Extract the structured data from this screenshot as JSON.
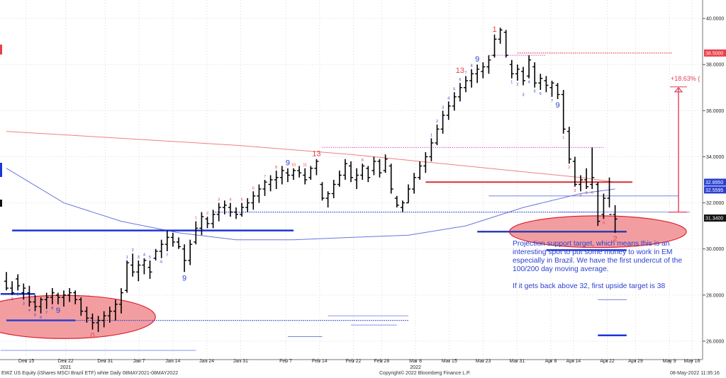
{
  "chart_data": {
    "type": "bar",
    "subtype": "ohlc-price-bars-with-demark-counts",
    "y_axis": {
      "side": "right",
      "ticks": [
        26,
        28,
        30,
        32,
        34,
        36,
        38,
        40
      ],
      "tick_labels": [
        "26.0000",
        "28.0000",
        "30.0000",
        "32.0000",
        "34.0000",
        "36.0000",
        "38.0000",
        "40.0000"
      ],
      "ylim": [
        25.2,
        40.8
      ]
    },
    "x_axis": {
      "ticks": [
        "Dec 15",
        "Dec 22",
        "Dec 31",
        "Jan 7",
        "Jan 14",
        "Jan 24",
        "Jan 31",
        "Feb 7",
        "Feb 14",
        "Feb 22",
        "Feb 28",
        "Mar 8",
        "Mar 15",
        "Mar 23",
        "Mar 31",
        "Apr 8",
        "Apr 14",
        "Apr 22",
        "Apr 29",
        "May 9",
        "May 16"
      ],
      "years": [
        {
          "label": "2021",
          "at": "Dec 22"
        },
        {
          "label": "2022",
          "at": "Mar 8"
        }
      ]
    },
    "price_tags": [
      {
        "label": "38.5000",
        "value": 38.5,
        "color": "#e8404a"
      },
      {
        "label": "32.8950",
        "value": 32.895,
        "color": "#2a3fd0"
      },
      {
        "label": "32.5595",
        "value": 32.5595,
        "color": "#2a3fd0"
      },
      {
        "label": "31.3400",
        "value": 31.34,
        "color": "#111111"
      }
    ],
    "annotation_pct": "+18.63% (",
    "ohlc": [
      [
        29.0,
        28.2,
        28.6,
        28.3
      ],
      [
        28.6,
        28.0,
        28.3,
        28.1
      ],
      [
        28.9,
        28.2,
        28.7,
        28.4
      ],
      [
        28.5,
        27.8,
        28.1,
        28.3
      ],
      [
        28.4,
        27.5,
        28.1,
        27.7
      ],
      [
        28.0,
        27.3,
        27.7,
        27.5
      ],
      [
        27.9,
        27.2,
        27.5,
        27.8
      ],
      [
        28.1,
        27.4,
        27.8,
        27.9
      ],
      [
        28.3,
        27.6,
        27.9,
        28.1
      ],
      [
        28.1,
        27.6,
        28.0,
        27.9
      ],
      [
        28.2,
        27.5,
        27.9,
        28.0
      ],
      [
        28.3,
        27.7,
        28.0,
        28.1
      ],
      [
        28.2,
        27.6,
        28.1,
        27.8
      ],
      [
        27.9,
        27.1,
        27.8,
        27.3
      ],
      [
        27.5,
        26.8,
        27.3,
        27.0
      ],
      [
        27.2,
        26.5,
        27.0,
        26.8
      ],
      [
        27.1,
        26.4,
        26.8,
        26.9
      ],
      [
        27.3,
        26.6,
        26.9,
        27.1
      ],
      [
        27.5,
        26.8,
        27.1,
        27.3
      ],
      [
        27.8,
        26.9,
        27.3,
        27.6
      ],
      [
        28.3,
        27.2,
        27.6,
        28.1
      ],
      [
        29.5,
        28.1,
        28.2,
        29.4
      ],
      [
        29.8,
        28.8,
        29.3,
        29.0
      ],
      [
        29.5,
        28.6,
        29.0,
        29.3
      ],
      [
        29.6,
        28.9,
        29.3,
        29.5
      ],
      [
        29.5,
        28.7,
        29.2,
        29.0
      ],
      [
        30.0,
        29.5,
        29.6,
        29.9
      ],
      [
        30.4,
        29.6,
        29.9,
        30.2
      ],
      [
        30.8,
        29.9,
        30.2,
        30.5
      ],
      [
        30.7,
        30.1,
        30.5,
        30.3
      ],
      [
        30.5,
        30.0,
        30.3,
        30.1
      ],
      [
        30.2,
        29.0,
        30.0,
        29.5
      ],
      [
        30.4,
        29.3,
        29.5,
        30.2
      ],
      [
        31.2,
        30.2,
        30.3,
        30.9
      ],
      [
        31.6,
        30.6,
        30.9,
        31.4
      ],
      [
        31.4,
        30.9,
        31.3,
        31.1
      ],
      [
        31.7,
        30.9,
        31.1,
        31.5
      ],
      [
        32.0,
        31.2,
        31.5,
        31.8
      ],
      [
        32.1,
        31.5,
        31.8,
        31.9
      ],
      [
        32.0,
        31.4,
        31.8,
        31.6
      ],
      [
        31.8,
        31.3,
        31.6,
        31.5
      ],
      [
        32.0,
        31.4,
        31.5,
        31.8
      ],
      [
        32.2,
        31.6,
        31.8,
        32.0
      ],
      [
        32.5,
        31.7,
        32.0,
        32.3
      ],
      [
        32.8,
        32.0,
        32.3,
        32.6
      ],
      [
        33.0,
        32.3,
        32.6,
        32.9
      ],
      [
        33.2,
        32.5,
        32.8,
        33.0
      ],
      [
        33.4,
        32.6,
        33.0,
        33.1
      ],
      [
        33.6,
        32.8,
        33.1,
        33.4
      ],
      [
        33.5,
        32.9,
        33.3,
        33.2
      ],
      [
        33.5,
        33.0,
        33.2,
        33.4
      ],
      [
        33.6,
        33.1,
        33.4,
        33.3
      ],
      [
        33.5,
        32.8,
        33.2,
        33.0
      ],
      [
        33.6,
        33.0,
        33.1,
        33.5
      ],
      [
        33.9,
        33.2,
        33.5,
        33.8
      ],
      [
        32.9,
        32.1,
        32.8,
        32.2
      ],
      [
        32.5,
        31.8,
        32.2,
        32.4
      ],
      [
        33.0,
        32.2,
        32.4,
        32.8
      ],
      [
        33.4,
        32.7,
        32.8,
        33.2
      ],
      [
        33.9,
        33.0,
        33.2,
        33.7
      ],
      [
        33.8,
        32.9,
        33.6,
        33.1
      ],
      [
        33.5,
        32.6,
        33.0,
        33.2
      ],
      [
        33.7,
        33.0,
        33.2,
        33.6
      ],
      [
        33.6,
        32.9,
        33.5,
        33.1
      ],
      [
        34.0,
        33.2,
        33.4,
        33.8
      ],
      [
        33.9,
        33.1,
        33.8,
        33.3
      ],
      [
        34.1,
        33.3,
        33.4,
        33.9
      ],
      [
        33.7,
        32.4,
        33.6,
        32.6
      ],
      [
        32.3,
        31.8,
        32.2,
        31.9
      ],
      [
        32.1,
        31.6,
        31.8,
        32.0
      ],
      [
        32.8,
        32.0,
        32.0,
        32.6
      ],
      [
        33.3,
        32.4,
        32.6,
        33.1
      ],
      [
        33.8,
        33.0,
        33.1,
        33.6
      ],
      [
        34.2,
        33.3,
        33.6,
        34.0
      ],
      [
        34.8,
        33.8,
        34.0,
        34.6
      ],
      [
        35.4,
        34.5,
        34.6,
        35.2
      ],
      [
        36.0,
        35.0,
        35.2,
        35.8
      ],
      [
        36.4,
        35.6,
        35.8,
        36.2
      ],
      [
        36.8,
        36.0,
        36.2,
        36.6
      ],
      [
        37.2,
        36.4,
        36.6,
        37.0
      ],
      [
        37.5,
        36.8,
        37.0,
        37.3
      ],
      [
        37.8,
        37.0,
        37.3,
        37.6
      ],
      [
        38.0,
        37.2,
        37.6,
        37.8
      ],
      [
        38.1,
        37.4,
        37.7,
        37.9
      ],
      [
        38.4,
        37.6,
        37.9,
        38.2
      ],
      [
        39.3,
        38.3,
        38.4,
        39.1
      ],
      [
        39.6,
        38.9,
        39.1,
        39.5
      ],
      [
        39.5,
        38.3,
        39.4,
        38.4
      ],
      [
        38.2,
        37.4,
        38.0,
        37.6
      ],
      [
        38.0,
        37.3,
        37.6,
        37.8
      ],
      [
        37.9,
        37.1,
        37.7,
        37.3
      ],
      [
        38.4,
        37.4,
        37.5,
        38.2
      ],
      [
        38.1,
        37.0,
        37.9,
        37.2
      ],
      [
        37.6,
        36.9,
        37.2,
        37.4
      ],
      [
        37.5,
        36.8,
        37.3,
        37.1
      ],
      [
        37.3,
        36.6,
        37.0,
        37.2
      ],
      [
        37.2,
        36.5,
        37.1,
        36.7
      ],
      [
        36.9,
        35.0,
        36.7,
        35.2
      ],
      [
        35.3,
        33.7,
        35.1,
        33.9
      ],
      [
        34.0,
        32.7,
        33.8,
        32.8
      ],
      [
        33.2,
        32.5,
        32.8,
        33.0
      ],
      [
        33.5,
        32.6,
        33.0,
        32.7
      ],
      [
        34.4,
        32.6,
        32.8,
        33.1
      ],
      [
        32.9,
        31.0,
        32.8,
        31.2
      ],
      [
        32.4,
        31.3,
        31.5,
        32.2
      ],
      [
        33.1,
        31.8,
        32.2,
        31.5
      ],
      [
        31.9,
        30.7,
        31.5,
        31.3
      ]
    ],
    "setup_counts": [
      {
        "i": 1,
        "label": "1",
        "pos": "below",
        "color": "#2a3fd0"
      },
      {
        "i": 2,
        "label": "2",
        "pos": "below",
        "color": "#2a3fd0"
      },
      {
        "i": 3,
        "label": "3",
        "pos": "below",
        "color": "#2a3fd0"
      },
      {
        "i": 4,
        "label": "4",
        "pos": "below",
        "color": "#2a3fd0"
      },
      {
        "i": 5,
        "label": "5",
        "pos": "below",
        "color": "#2a3fd0"
      },
      {
        "i": 6,
        "label": "6",
        "pos": "below",
        "color": "#2a3fd0"
      },
      {
        "i": 7,
        "label": "7",
        "pos": "below",
        "color": "#2a3fd0"
      },
      {
        "i": 8,
        "label": "8",
        "pos": "below",
        "color": "#2a3fd0"
      },
      {
        "i": 9,
        "label": "9",
        "pos": "below",
        "color": "#2a3fd0",
        "big": true
      },
      {
        "i": 21,
        "label": "1",
        "pos": "above",
        "color": "#2a3fd0"
      },
      {
        "i": 22,
        "label": "2",
        "pos": "above",
        "color": "#2a3fd0"
      },
      {
        "i": 23,
        "label": "3",
        "pos": "above",
        "color": "#2a3fd0"
      },
      {
        "i": 24,
        "label": "4",
        "pos": "above",
        "color": "#2a3fd0"
      },
      {
        "i": 25,
        "label": "5",
        "pos": "above",
        "color": "#2a3fd0"
      },
      {
        "i": 27,
        "label": "6",
        "pos": "below",
        "color": "#2a3fd0"
      },
      {
        "i": 28,
        "label": "7",
        "pos": "below",
        "color": "#2a3fd0"
      },
      {
        "i": 31,
        "label": "9",
        "pos": "below",
        "color": "#2a3fd0",
        "big": true
      },
      {
        "i": 33,
        "label": "1",
        "pos": "above",
        "color": "#e8404a"
      },
      {
        "i": 35,
        "label": "2",
        "pos": "above",
        "color": "#e8404a"
      },
      {
        "i": 37,
        "label": "3",
        "pos": "above",
        "color": "#e8404a"
      },
      {
        "i": 39,
        "label": "4",
        "pos": "above",
        "color": "#e8404a"
      },
      {
        "i": 41,
        "label": "5",
        "pos": "above",
        "color": "#e8404a"
      },
      {
        "i": 43,
        "label": "6",
        "pos": "above",
        "color": "#e8404a"
      },
      {
        "i": 45,
        "label": "7",
        "pos": "above",
        "color": "#e8404a"
      },
      {
        "i": 47,
        "label": "8",
        "pos": "above",
        "color": "#e8404a"
      },
      {
        "i": 49,
        "label": "9",
        "pos": "above",
        "color": "#2a3fd0",
        "big": true
      },
      {
        "i": 50,
        "label": "10",
        "pos": "above",
        "color": "#e8404a"
      },
      {
        "i": 52,
        "label": "11",
        "pos": "above",
        "color": "#e8404a"
      },
      {
        "i": 54,
        "label": "13",
        "pos": "above",
        "color": "#e8404a",
        "big": true
      },
      {
        "i": 62,
        "label": "8",
        "pos": "above",
        "color": "#e8404a"
      },
      {
        "i": 74,
        "label": "1",
        "pos": "above",
        "color": "#2a3fd0"
      },
      {
        "i": 75,
        "label": "2",
        "pos": "above",
        "color": "#2a3fd0"
      },
      {
        "i": 76,
        "label": "3",
        "pos": "above",
        "color": "#2a3fd0"
      },
      {
        "i": 77,
        "label": "4",
        "pos": "above",
        "color": "#2a3fd0"
      },
      {
        "i": 78,
        "label": "5",
        "pos": "above",
        "color": "#2a3fd0"
      },
      {
        "i": 79,
        "label": "6",
        "pos": "above",
        "color": "#2a3fd0"
      },
      {
        "i": 80,
        "label": "7",
        "pos": "above",
        "color": "#2a3fd0"
      },
      {
        "i": 81,
        "label": "8",
        "pos": "above",
        "color": "#2a3fd0"
      },
      {
        "i": 82,
        "label": "9",
        "pos": "above",
        "color": "#2a3fd0",
        "big": true
      },
      {
        "i": 79,
        "label": "13",
        "pos": "above2",
        "color": "#e8404a",
        "big": true
      },
      {
        "i": 85,
        "label": "1",
        "pos": "above",
        "color": "#e8404a",
        "big": true
      },
      {
        "i": 88,
        "label": "1",
        "pos": "below",
        "color": "#2a3fd0"
      },
      {
        "i": 89,
        "label": "2",
        "pos": "below",
        "color": "#2a3fd0"
      },
      {
        "i": 90,
        "label": "3",
        "pos": "below2",
        "color": "#2a3fd0"
      },
      {
        "i": 91,
        "label": "4",
        "pos": "below",
        "color": "#2a3fd0"
      },
      {
        "i": 92,
        "label": "5",
        "pos": "below",
        "color": "#2a3fd0"
      },
      {
        "i": 93,
        "label": "6",
        "pos": "below",
        "color": "#2a3fd0"
      },
      {
        "i": 95,
        "label": "7",
        "pos": "below",
        "color": "#2a3fd0"
      },
      {
        "i": 96,
        "label": "9",
        "pos": "below",
        "color": "#2a3fd0",
        "big": true
      },
      {
        "i": 97,
        "label": "1",
        "pos": "below",
        "color": "#e8404a"
      },
      {
        "i": 98,
        "label": "2",
        "pos": "below",
        "color": "#e8404a"
      },
      {
        "i": 99,
        "label": "3",
        "pos": "below",
        "color": "#e8404a"
      },
      {
        "i": 100,
        "label": "4",
        "pos": "below",
        "color": "#e8404a"
      },
      {
        "i": 101,
        "label": "5",
        "pos": "below",
        "color": "#e8404a"
      },
      {
        "i": 102,
        "label": "6",
        "pos": "below",
        "color": "#e8404a"
      },
      {
        "i": 104,
        "label": "8",
        "pos": "below",
        "color": "#e8404a"
      },
      {
        "i": 106,
        "label": "2",
        "pos": "below",
        "color": "#e8404a",
        "big": true
      },
      {
        "i": 15,
        "label": "0",
        "pos": "below",
        "color": "#e8404a",
        "big": true
      }
    ],
    "ma_200": [
      [
        0,
        35.1
      ],
      [
        20,
        34.8
      ],
      [
        40,
        34.5
      ],
      [
        60,
        34.1
      ],
      [
        80,
        33.6
      ],
      [
        100,
        33.1
      ],
      [
        106,
        32.9
      ]
    ],
    "ma_100": [
      [
        0,
        33.5
      ],
      [
        10,
        32.0
      ],
      [
        20,
        31.2
      ],
      [
        30,
        30.7
      ],
      [
        40,
        30.4
      ],
      [
        50,
        30.4
      ],
      [
        60,
        30.5
      ],
      [
        70,
        30.6
      ],
      [
        80,
        31.0
      ],
      [
        90,
        31.8
      ],
      [
        100,
        32.4
      ],
      [
        106,
        32.6
      ]
    ],
    "levels": [
      {
        "y": 30.8,
        "i0": 1,
        "i1": 50,
        "color": "#1d35d8",
        "style": "solid-thick"
      },
      {
        "y": 28.05,
        "i0": -1,
        "i1": 5,
        "color": "#1d35d8",
        "style": "solid-thick"
      },
      {
        "y": 26.9,
        "i0": 0,
        "i1": 12,
        "color": "#3040d0",
        "style": "solid-thick"
      },
      {
        "y": 26.9,
        "i0": 12,
        "i1": 70,
        "color": "#3040d0",
        "style": "dotted"
      },
      {
        "y": 31.6,
        "i0": 36,
        "i1": 103,
        "color": "#3040d0",
        "style": "dotted"
      },
      {
        "y": 34.4,
        "i0": 55,
        "i1": 104,
        "color": "#e070d0",
        "style": "dotted"
      },
      {
        "y": 38.5,
        "i0": 89,
        "i1": 116,
        "color": "#e8404a",
        "style": "dotted"
      },
      {
        "y": 38.4,
        "i0": 84,
        "i1": 94,
        "color": "#e070d0",
        "style": "dotted"
      },
      {
        "y": 32.9,
        "i0": 73,
        "i1": 109,
        "color": "#d92f36",
        "style": "solid"
      },
      {
        "y": 32.3,
        "i0": 84,
        "i1": 117,
        "color": "#6070e0",
        "style": "solid-thin"
      },
      {
        "y": 31.6,
        "i0": 96,
        "i1": 119,
        "color": "#6070e0",
        "style": "solid-thin"
      },
      {
        "y": 30.75,
        "i0": 82,
        "i1": 108,
        "color": "#3040b0",
        "style": "solid-thick"
      },
      {
        "y": 29.95,
        "i0": 94,
        "i1": 108,
        "color": "#1d35d8",
        "style": "solid-thick"
      },
      {
        "y": 27.8,
        "i0": 103,
        "i1": 108,
        "color": "#6070e0",
        "style": "solid-thin"
      },
      {
        "y": 27.1,
        "i0": 56,
        "i1": 70,
        "color": "#6070e0",
        "style": "solid-thin"
      },
      {
        "y": 26.7,
        "i0": 60,
        "i1": 68,
        "color": "#6070e0",
        "style": "solid-thin"
      },
      {
        "y": 26.2,
        "i0": 49,
        "i1": 55,
        "color": "#6070e0",
        "style": "solid-thin"
      },
      {
        "y": 26.25,
        "i0": 103,
        "i1": 108,
        "color": "#1d35d8",
        "style": "solid-thick"
      },
      {
        "y": 25.6,
        "i0": -1,
        "i1": 33,
        "color": "#6070e0",
        "style": "solid-thin"
      },
      {
        "y": 29.4,
        "i0": 19,
        "i1": 25,
        "color": "#d92f36",
        "style": "marker"
      }
    ],
    "ellipses": [
      {
        "cx": 10,
        "cy": 27.05,
        "rx_bars": 14.5,
        "ry": 0.75
      },
      {
        "cx": 103,
        "cy": 30.75,
        "rx_bars": 14,
        "ry": 0.55
      }
    ]
  },
  "note": {
    "paragraph1": "Projection support target, which means this is an interesting spot to put some money to work in EM especially in Brazil. We have the first undercut of the 100/200 day moving average.",
    "paragraph2": "If it gets back above 32, first upside target is 38"
  },
  "footer": {
    "left": "EWZ US Equity (iShares MSCI Brazil ETF) white  Daily 08MAY2021-08MAY2022",
    "center": "Copyright© 2022 Bloomberg Finance L.P.",
    "right": "08-May-2022 11:35:16"
  }
}
